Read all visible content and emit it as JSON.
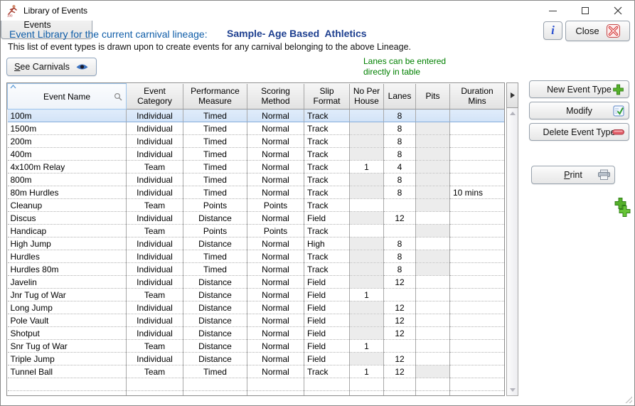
{
  "window": {
    "title": "Library of Events"
  },
  "header": {
    "library_label": "Event Library for the current carnival lineage:",
    "lineage_name": "Sample- Age Based  Athletics",
    "description": "This list of event types is drawn upon to create events for any carnival belonging to the above Lineage.",
    "info_button": "i",
    "close_button": "Close",
    "see_carnivals_button": "See Carnivals",
    "lanes_note": "Lanes can be entered\ndirectly in table"
  },
  "table": {
    "columns": [
      {
        "id": "name",
        "label": "Event Name"
      },
      {
        "id": "category",
        "label": "Event\nCategory"
      },
      {
        "id": "measure",
        "label": "Performance\nMeasure"
      },
      {
        "id": "scoring",
        "label": "Scoring\nMethod"
      },
      {
        "id": "slip",
        "label": "Slip\nFormat"
      },
      {
        "id": "no_per_house",
        "label": "No Per\nHouse"
      },
      {
        "id": "lanes",
        "label": "Lanes"
      },
      {
        "id": "pits",
        "label": "Pits"
      },
      {
        "id": "duration",
        "label": "Duration\nMins"
      }
    ],
    "rows": [
      {
        "name": "100m",
        "category": "Individual",
        "measure": "Timed",
        "scoring": "Normal",
        "slip": "Track",
        "no_per_house": "",
        "lanes": "8",
        "pits": "",
        "duration": "",
        "selected": true
      },
      {
        "name": "1500m",
        "category": "Individual",
        "measure": "Timed",
        "scoring": "Normal",
        "slip": "Track",
        "no_per_house": "",
        "lanes": "8",
        "pits": "",
        "duration": ""
      },
      {
        "name": "200m",
        "category": "Individual",
        "measure": "Timed",
        "scoring": "Normal",
        "slip": "Track",
        "no_per_house": "",
        "lanes": "8",
        "pits": "",
        "duration": ""
      },
      {
        "name": "400m",
        "category": "Individual",
        "measure": "Timed",
        "scoring": "Normal",
        "slip": "Track",
        "no_per_house": "",
        "lanes": "8",
        "pits": "",
        "duration": ""
      },
      {
        "name": "4x100m Relay",
        "category": "Team",
        "measure": "Timed",
        "scoring": "Normal",
        "slip": "Track",
        "no_per_house": "1",
        "lanes": "4",
        "pits": "",
        "duration": ""
      },
      {
        "name": "800m",
        "category": "Individual",
        "measure": "Timed",
        "scoring": "Normal",
        "slip": "Track",
        "no_per_house": "",
        "lanes": "8",
        "pits": "",
        "duration": ""
      },
      {
        "name": "80m Hurdles",
        "category": "Individual",
        "measure": "Timed",
        "scoring": "Normal",
        "slip": "Track",
        "no_per_house": "",
        "lanes": "8",
        "pits": "",
        "duration": "10 mins"
      },
      {
        "name": "Cleanup",
        "category": "Team",
        "measure": "Points",
        "scoring": "Points",
        "slip": "Track",
        "no_per_house": "",
        "lanes": "",
        "pits": "",
        "duration": ""
      },
      {
        "name": "Discus",
        "category": "Individual",
        "measure": "Distance",
        "scoring": "Normal",
        "slip": "Field",
        "no_per_house": "",
        "lanes": "12",
        "pits": "",
        "duration": ""
      },
      {
        "name": "Handicap",
        "category": "Team",
        "measure": "Points",
        "scoring": "Points",
        "slip": "Track",
        "no_per_house": "",
        "lanes": "",
        "pits": "",
        "duration": ""
      },
      {
        "name": "High Jump",
        "category": "Individual",
        "measure": "Distance",
        "scoring": "Normal",
        "slip": "High",
        "no_per_house": "",
        "lanes": "8",
        "pits": "",
        "duration": ""
      },
      {
        "name": "Hurdles",
        "category": "Individual",
        "measure": "Timed",
        "scoring": "Normal",
        "slip": "Track",
        "no_per_house": "",
        "lanes": "8",
        "pits": "",
        "duration": ""
      },
      {
        "name": "Hurdles 80m",
        "category": "Individual",
        "measure": "Timed",
        "scoring": "Normal",
        "slip": "Track",
        "no_per_house": "",
        "lanes": "8",
        "pits": "",
        "duration": ""
      },
      {
        "name": "Javelin",
        "category": "Individual",
        "measure": "Distance",
        "scoring": "Normal",
        "slip": "Field",
        "no_per_house": "",
        "lanes": "12",
        "pits": "",
        "duration": ""
      },
      {
        "name": "Jnr Tug of War",
        "category": "Team",
        "measure": "Distance",
        "scoring": "Normal",
        "slip": "Field",
        "no_per_house": "1",
        "lanes": "",
        "pits": "",
        "duration": ""
      },
      {
        "name": "Long Jump",
        "category": "Individual",
        "measure": "Distance",
        "scoring": "Normal",
        "slip": "Field",
        "no_per_house": "",
        "lanes": "12",
        "pits": "",
        "duration": ""
      },
      {
        "name": "Pole Vault",
        "category": "Individual",
        "measure": "Distance",
        "scoring": "Normal",
        "slip": "Field",
        "no_per_house": "",
        "lanes": "12",
        "pits": "",
        "duration": ""
      },
      {
        "name": "Shotput",
        "category": "Individual",
        "measure": "Distance",
        "scoring": "Normal",
        "slip": "Field",
        "no_per_house": "",
        "lanes": "12",
        "pits": "",
        "duration": ""
      },
      {
        "name": "Snr Tug of War",
        "category": "Team",
        "measure": "Distance",
        "scoring": "Normal",
        "slip": "Field",
        "no_per_house": "1",
        "lanes": "",
        "pits": "",
        "duration": ""
      },
      {
        "name": "Triple Jump",
        "category": "Individual",
        "measure": "Distance",
        "scoring": "Normal",
        "slip": "Field",
        "no_per_house": "",
        "lanes": "12",
        "pits": "",
        "duration": ""
      },
      {
        "name": "Tunnel Ball",
        "category": "Team",
        "measure": "Timed",
        "scoring": "Normal",
        "slip": "Track",
        "no_per_house": "1",
        "lanes": "12",
        "pits": "",
        "duration": ""
      }
    ],
    "filler_rows": 2
  },
  "side_buttons": {
    "new_event_type": "New Event Type",
    "modify": "Modify",
    "delete_event_type": "Delete Event Type",
    "print": "Print",
    "add_common_events": "Add Common\nEvents"
  },
  "colors": {
    "heading_blue": "#0f5da8",
    "lineage_navy": "#1c3e8f",
    "note_green": "#008000",
    "selected_row": "#d9e8fa",
    "selected_border": "#84abdb",
    "readonly_cell": "#ececec",
    "plus_green": "#55b02a",
    "delete_red": "#e4606a",
    "close_red": "#d63a3a"
  }
}
